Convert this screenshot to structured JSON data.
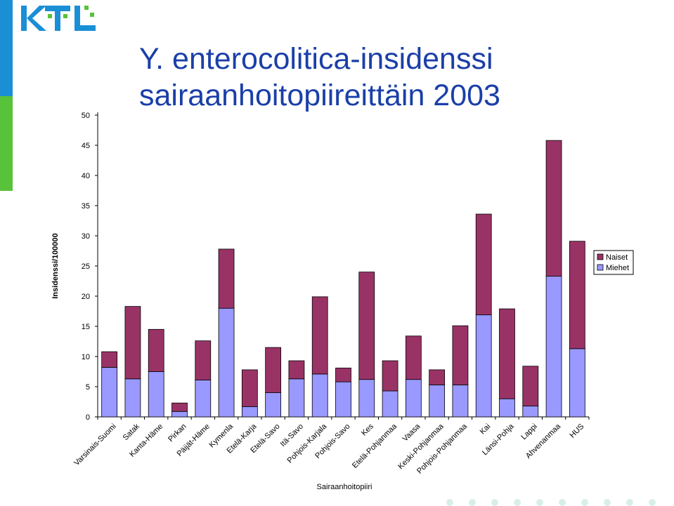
{
  "logo": {
    "text": "KTL",
    "colors": {
      "blue": "#1a8fd6",
      "green": "#58c23a"
    }
  },
  "title": {
    "line1": "Y. enterocolitica-insidenssi",
    "line2": "sairaanhoitopiireittäin 2003"
  },
  "chart_data": {
    "type": "bar",
    "stacked": true,
    "ylabel": "Insidenssi/100000",
    "xlabel": "Sairaanhoitopiiri",
    "ylim": [
      0,
      50
    ],
    "yticks": [
      0,
      5,
      10,
      15,
      20,
      25,
      30,
      35,
      40,
      45,
      50
    ],
    "grid": false,
    "legend_position": "right",
    "categories": [
      "Varsinais-Suomi",
      "Satak",
      "Kanta-Häme",
      "Pirkan",
      "Päijät-Häme",
      "Kymenla",
      "Etelä-Karja",
      "Etelä-Savo",
      "Itä-Savo",
      "Pohjois-Karjala",
      "Pohjois-Savo",
      "Kes",
      "Etelä-Pohjanmaa",
      "Vaasa",
      "Keski-Pohjanmaa",
      "Pohjois-Pohjanmaa",
      "Kai",
      "Länsi-Pohja",
      "Lappi",
      "Ahvenanmaa",
      "HUS"
    ],
    "series": [
      {
        "name": "Miehet",
        "color": "#9999ff",
        "values": [
          8.2,
          6.3,
          7.5,
          0.9,
          6.1,
          18.0,
          1.7,
          4.0,
          6.3,
          7.1,
          5.8,
          6.2,
          4.3,
          6.2,
          5.3,
          5.3,
          16.9,
          3.0,
          1.8,
          23.3,
          11.3
        ]
      },
      {
        "name": "Naiset",
        "color": "#993366",
        "values": [
          2.6,
          12.0,
          7.0,
          1.4,
          6.5,
          9.8,
          6.1,
          7.5,
          3.0,
          12.8,
          2.3,
          17.8,
          5.0,
          7.2,
          2.5,
          9.8,
          16.7,
          14.9,
          6.6,
          22.5,
          17.8
        ]
      }
    ]
  }
}
